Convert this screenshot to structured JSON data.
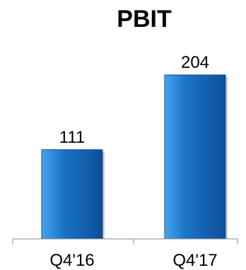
{
  "chart_data": {
    "type": "bar",
    "title": "PBIT",
    "categories": [
      "Q4'16",
      "Q4'17"
    ],
    "values": [
      111,
      204
    ],
    "ylim": [
      0,
      204
    ],
    "grid": false,
    "bar_color": "#1a73c8",
    "bar_highlight": "#4aa3ec",
    "bar_shadow": "#0e4f96"
  }
}
